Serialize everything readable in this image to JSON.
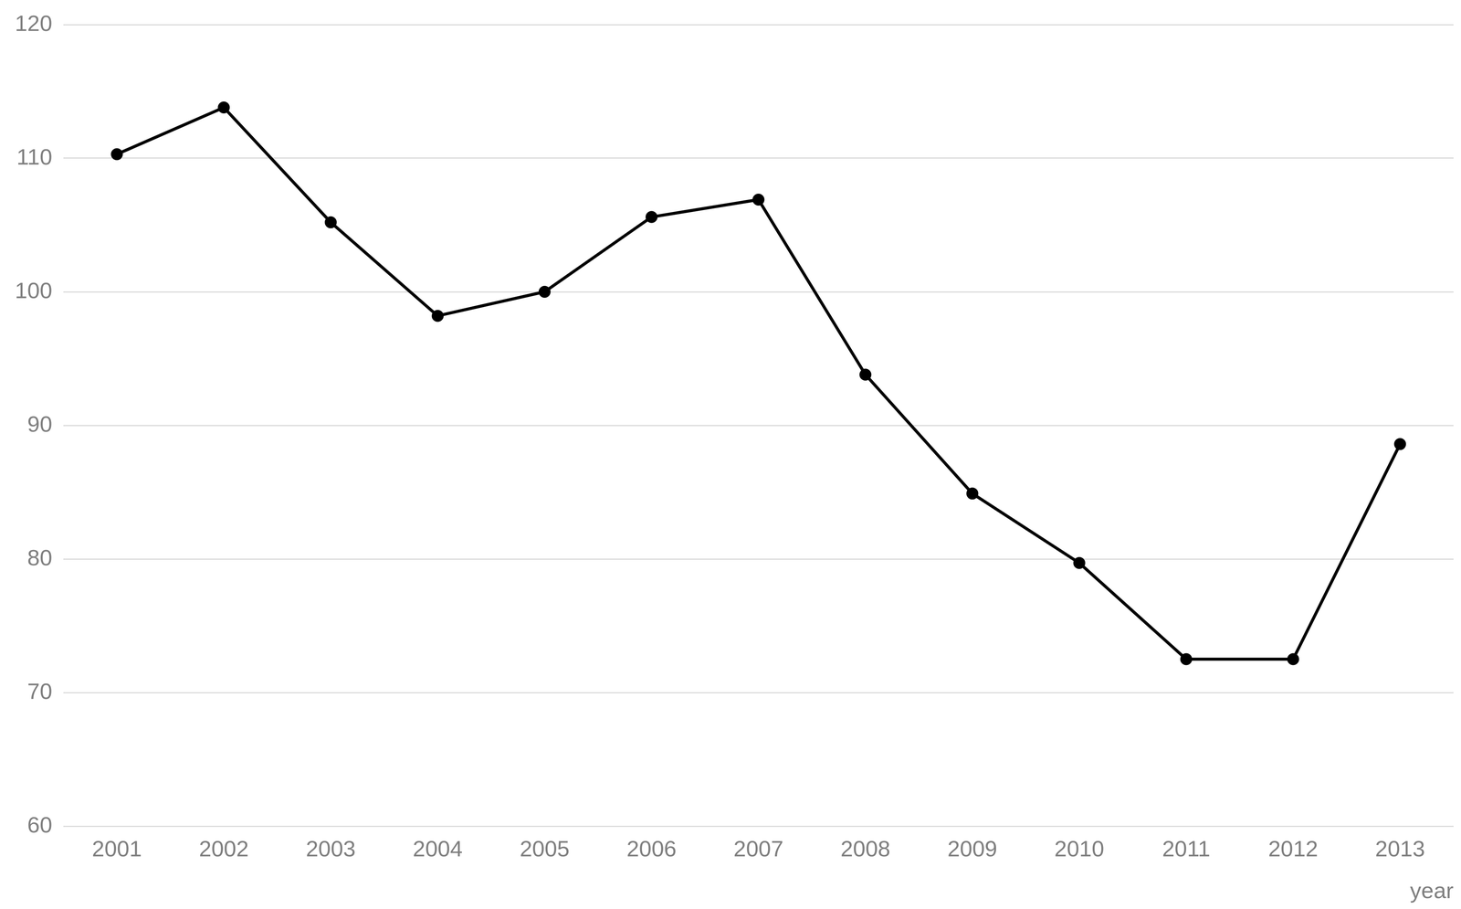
{
  "chart_data": {
    "type": "line",
    "categories": [
      "2001",
      "2002",
      "2003",
      "2004",
      "2005",
      "2006",
      "2007",
      "2008",
      "2009",
      "2010",
      "2011",
      "2012",
      "2013"
    ],
    "values": [
      110.3,
      113.8,
      105.2,
      98.2,
      100,
      105.6,
      106.9,
      93.8,
      84.9,
      79.7,
      72.5,
      72.5,
      88.6
    ],
    "color": "#000000",
    "marker": "circle",
    "x_label": "year",
    "ylim": [
      60,
      120
    ],
    "yticks": [
      60,
      70,
      80,
      90,
      100,
      110,
      120
    ],
    "grid": true
  }
}
